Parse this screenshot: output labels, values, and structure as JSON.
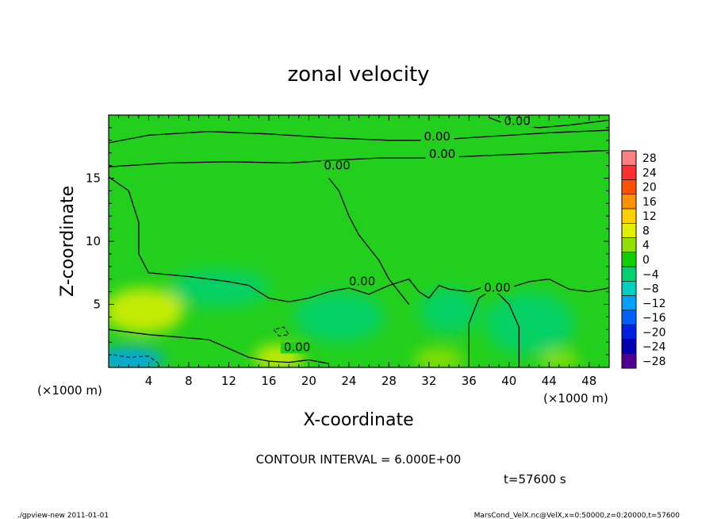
{
  "chart_data": {
    "type": "heatmap",
    "title": "zonal velocity",
    "xlabel": "X-coordinate",
    "ylabel": "Z-coordinate",
    "x_unit": "(×1000 m)",
    "x_unit_right": "(×1000 m)",
    "xlim": [
      0,
      50
    ],
    "ylim": [
      0,
      20
    ],
    "x_ticks": [
      4,
      8,
      12,
      16,
      20,
      24,
      28,
      32,
      36,
      40,
      44,
      48
    ],
    "y_ticks": [
      5,
      10,
      15
    ],
    "contour_interval_text": "CONTOUR INTERVAL = 6.000E+00",
    "contour_label": "0.00",
    "time_text": "t=57600 s",
    "colorbar": {
      "levels": [
        28,
        24,
        20,
        16,
        12,
        8,
        4,
        0,
        -4,
        -8,
        -12,
        -16,
        -20,
        -24,
        -28
      ],
      "colors": [
        "#ff8080",
        "#ff3030",
        "#ff5000",
        "#ff9000",
        "#ffd000",
        "#e0f000",
        "#90e000",
        "#10d000",
        "#00d070",
        "#00d0c0",
        "#00a0ff",
        "#0060ff",
        "#0020e0",
        "#0000b0",
        "#500090"
      ]
    },
    "contours_0": [
      {
        "label_at": [
          31.5,
          18.0
        ],
        "points": [
          [
            0,
            17.8
          ],
          [
            4,
            18.4
          ],
          [
            10,
            18.7
          ],
          [
            16,
            18.5
          ],
          [
            22,
            18.2
          ],
          [
            28,
            18.0
          ],
          [
            32,
            18.0
          ],
          [
            38,
            18.3
          ],
          [
            44,
            18.6
          ],
          [
            50,
            18.8
          ]
        ]
      },
      {
        "label_at": [
          32.0,
          16.6
        ],
        "points": [
          [
            0,
            15.9
          ],
          [
            6,
            16.2
          ],
          [
            12,
            16.3
          ],
          [
            18,
            16.2
          ],
          [
            22,
            16.4
          ],
          [
            27,
            16.6
          ],
          [
            32,
            16.6
          ],
          [
            38,
            16.8
          ],
          [
            44,
            17.0
          ],
          [
            50,
            17.2
          ]
        ]
      },
      {
        "label_at": [
          39.5,
          19.2
        ],
        "points": [
          [
            38,
            19.8
          ],
          [
            40,
            19.2
          ],
          [
            43,
            19.0
          ],
          [
            46,
            19.2
          ],
          [
            50,
            19.6
          ]
        ]
      },
      {
        "label_at": [
          21.5,
          15.7
        ],
        "points": [
          [
            0,
            15.1
          ],
          [
            2,
            14.0
          ],
          [
            3,
            11.5
          ],
          [
            3,
            9.0
          ],
          [
            4,
            7.5
          ],
          [
            8,
            7.2
          ],
          [
            12,
            6.8
          ],
          [
            14,
            6.5
          ],
          [
            16,
            5.5
          ],
          [
            18,
            5.2
          ],
          [
            20,
            5.5
          ],
          [
            22,
            6.0
          ],
          [
            24,
            6.3
          ],
          [
            26,
            5.8
          ],
          [
            28,
            6.5
          ],
          [
            30,
            7.0
          ],
          [
            31,
            6.0
          ],
          [
            32,
            5.5
          ],
          [
            33,
            6.5
          ],
          [
            34,
            6.2
          ],
          [
            36,
            6.0
          ],
          [
            38,
            6.5
          ],
          [
            40,
            6.3
          ],
          [
            42,
            6.8
          ],
          [
            44,
            7.0
          ],
          [
            46,
            6.2
          ],
          [
            48,
            6.0
          ],
          [
            50,
            6.3
          ]
        ]
      },
      {
        "label_at": [
          24.0,
          6.5
        ],
        "points": [
          [
            22,
            15.0
          ],
          [
            23,
            14.0
          ],
          [
            24,
            12.0
          ],
          [
            25,
            10.5
          ],
          [
            26,
            9.5
          ],
          [
            27,
            8.5
          ],
          [
            28,
            7.0
          ],
          [
            29,
            6.0
          ],
          [
            30,
            5.0
          ]
        ]
      },
      {
        "label_at": [
          17.5,
          1.3
        ],
        "points": [
          [
            0,
            3.0
          ],
          [
            4,
            2.6
          ],
          [
            7,
            2.4
          ],
          [
            10,
            2.2
          ],
          [
            12,
            1.5
          ],
          [
            14,
            0.8
          ],
          [
            16,
            0.5
          ],
          [
            18,
            0.4
          ],
          [
            20,
            0.6
          ],
          [
            22,
            0.3
          ]
        ]
      },
      {
        "label_at": [
          37.5,
          6.0
        ],
        "points": [
          [
            36,
            0
          ],
          [
            36,
            3.5
          ],
          [
            37,
            5.5
          ],
          [
            38,
            6.0
          ],
          [
            39,
            5.8
          ],
          [
            40,
            5.0
          ],
          [
            41,
            3.2
          ],
          [
            41,
            0
          ]
        ]
      }
    ],
    "contours_dashed": [
      {
        "points": [
          [
            0.5,
            1.0
          ],
          [
            2,
            0.8
          ],
          [
            4,
            0.9
          ],
          [
            5,
            0.3
          ]
        ]
      },
      {
        "points": [
          [
            16.5,
            3.0
          ],
          [
            17,
            2.5
          ],
          [
            18,
            2.6
          ],
          [
            17.5,
            3.2
          ],
          [
            16.5,
            3.0
          ]
        ]
      }
    ],
    "blobs": [
      {
        "center": [
          3.5,
          4.5
        ],
        "radius": [
          4.0,
          1.8
        ],
        "value": 8
      },
      {
        "center": [
          2.0,
          0.6
        ],
        "radius": [
          3.5,
          1.0
        ],
        "value": -12
      },
      {
        "center": [
          23.0,
          4.0
        ],
        "radius": [
          4.5,
          2.0
        ],
        "value": -4
      },
      {
        "center": [
          34.0,
          4.5
        ],
        "radius": [
          3.0,
          1.8
        ],
        "value": -4
      },
      {
        "center": [
          42.0,
          3.5
        ],
        "radius": [
          4.5,
          2.5
        ],
        "value": -4
      },
      {
        "center": [
          11.0,
          6.3
        ],
        "radius": [
          5.0,
          1.5
        ],
        "value": -4
      },
      {
        "center": [
          17.0,
          0.8
        ],
        "radius": [
          2.5,
          1.0
        ],
        "value": 8
      },
      {
        "center": [
          33.0,
          0.6
        ],
        "radius": [
          2.5,
          1.0
        ],
        "value": 6
      },
      {
        "center": [
          45.0,
          0.6
        ],
        "radius": [
          2.0,
          0.8
        ],
        "value": 6
      }
    ]
  },
  "footer": {
    "left": "./gpview-new  2011-01-01",
    "right": "MarsCond_VelX.nc@VelX,x=0:50000,z=0:20000,t=57600"
  }
}
